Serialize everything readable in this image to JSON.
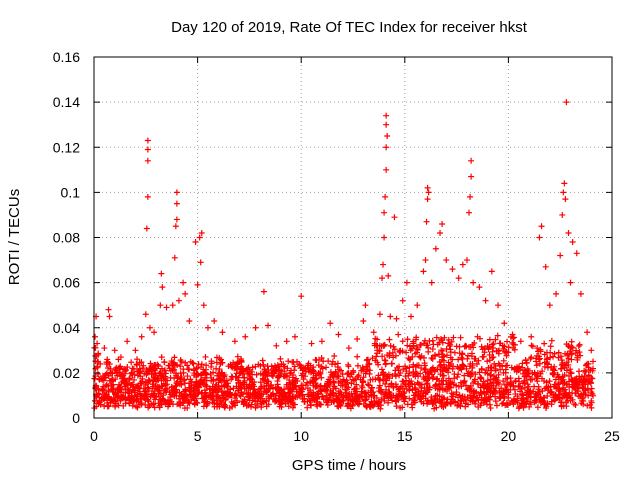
{
  "chart_data": {
    "type": "scatter",
    "title": "Day 120 of 2019, Rate Of TEC Index for receiver hkst",
    "xlabel": "GPS time / hours",
    "ylabel": "ROTI / TECUs",
    "xlim": [
      0,
      25
    ],
    "ylim": [
      0,
      0.16
    ],
    "x_ticks": [
      0,
      5,
      10,
      15,
      20,
      25
    ],
    "x_tick_labels": [
      "0",
      "5",
      "10",
      "15",
      "20",
      "25"
    ],
    "y_ticks": [
      0,
      0.02,
      0.04,
      0.06,
      0.08,
      0.1,
      0.12,
      0.14,
      0.16
    ],
    "y_tick_labels": [
      "0",
      "0.02",
      "0.04",
      "0.06",
      "0.08",
      "0.1",
      "0.12",
      "0.14",
      "0.16"
    ],
    "grid": true,
    "marker": "+",
    "marker_color": "#ff0000",
    "series": [
      {
        "name": "ROTI",
        "points": [
          [
            0.05,
            0.036
          ],
          [
            0.1,
            0.045
          ],
          [
            0.15,
            0.033
          ],
          [
            0.2,
            0.028
          ],
          [
            0.3,
            0.024
          ],
          [
            0.5,
            0.031
          ],
          [
            0.7,
            0.048
          ],
          [
            0.75,
            0.045
          ],
          [
            1.0,
            0.03
          ],
          [
            1.3,
            0.027
          ],
          [
            1.6,
            0.034
          ],
          [
            2.0,
            0.03
          ],
          [
            2.3,
            0.036
          ],
          [
            2.5,
            0.046
          ],
          [
            2.55,
            0.084
          ],
          [
            2.6,
            0.098
          ],
          [
            2.6,
            0.114
          ],
          [
            2.6,
            0.119
          ],
          [
            2.6,
            0.123
          ],
          [
            2.7,
            0.04
          ],
          [
            2.9,
            0.038
          ],
          [
            3.2,
            0.05
          ],
          [
            3.25,
            0.064
          ],
          [
            3.3,
            0.058
          ],
          [
            3.5,
            0.049
          ],
          [
            3.8,
            0.05
          ],
          [
            3.9,
            0.071
          ],
          [
            3.95,
            0.085
          ],
          [
            4.0,
            0.088
          ],
          [
            4.0,
            0.1
          ],
          [
            4.0,
            0.095
          ],
          [
            4.1,
            0.052
          ],
          [
            4.3,
            0.06
          ],
          [
            4.4,
            0.055
          ],
          [
            4.6,
            0.043
          ],
          [
            4.9,
            0.078
          ],
          [
            5.0,
            0.059
          ],
          [
            5.1,
            0.08
          ],
          [
            5.15,
            0.069
          ],
          [
            5.2,
            0.082
          ],
          [
            5.3,
            0.05
          ],
          [
            5.5,
            0.04
          ],
          [
            5.8,
            0.043
          ],
          [
            6.2,
            0.038
          ],
          [
            6.8,
            0.034
          ],
          [
            7.3,
            0.036
          ],
          [
            7.8,
            0.04
          ],
          [
            8.2,
            0.056
          ],
          [
            8.4,
            0.041
          ],
          [
            8.8,
            0.032
          ],
          [
            9.3,
            0.034
          ],
          [
            9.7,
            0.036
          ],
          [
            10.0,
            0.054
          ],
          [
            10.5,
            0.033
          ],
          [
            11.0,
            0.034
          ],
          [
            11.4,
            0.042
          ],
          [
            11.8,
            0.037
          ],
          [
            12.3,
            0.031
          ],
          [
            12.7,
            0.035
          ],
          [
            13.0,
            0.043
          ],
          [
            13.1,
            0.05
          ],
          [
            13.5,
            0.038
          ],
          [
            13.8,
            0.046
          ],
          [
            13.9,
            0.062
          ],
          [
            13.95,
            0.068
          ],
          [
            14.0,
            0.08
          ],
          [
            14.0,
            0.091
          ],
          [
            14.05,
            0.098
          ],
          [
            14.1,
            0.11
          ],
          [
            14.1,
            0.12
          ],
          [
            14.15,
            0.125
          ],
          [
            14.1,
            0.13
          ],
          [
            14.1,
            0.134
          ],
          [
            14.2,
            0.063
          ],
          [
            14.3,
            0.045
          ],
          [
            14.5,
            0.089
          ],
          [
            14.6,
            0.044
          ],
          [
            14.9,
            0.052
          ],
          [
            15.1,
            0.06
          ],
          [
            15.3,
            0.045
          ],
          [
            15.6,
            0.05
          ],
          [
            15.9,
            0.065
          ],
          [
            16.0,
            0.07
          ],
          [
            16.05,
            0.087
          ],
          [
            16.1,
            0.097
          ],
          [
            16.1,
            0.102
          ],
          [
            16.15,
            0.1
          ],
          [
            16.3,
            0.06
          ],
          [
            16.5,
            0.075
          ],
          [
            16.7,
            0.082
          ],
          [
            16.8,
            0.086
          ],
          [
            17.0,
            0.07
          ],
          [
            17.3,
            0.066
          ],
          [
            17.6,
            0.062
          ],
          [
            17.8,
            0.068
          ],
          [
            18.0,
            0.07
          ],
          [
            18.1,
            0.091
          ],
          [
            18.15,
            0.098
          ],
          [
            18.2,
            0.107
          ],
          [
            18.2,
            0.114
          ],
          [
            18.3,
            0.06
          ],
          [
            18.6,
            0.058
          ],
          [
            18.9,
            0.052
          ],
          [
            19.2,
            0.065
          ],
          [
            19.5,
            0.05
          ],
          [
            19.8,
            0.042
          ],
          [
            20.2,
            0.037
          ],
          [
            20.6,
            0.034
          ],
          [
            21.1,
            0.036
          ],
          [
            21.5,
            0.08
          ],
          [
            21.6,
            0.085
          ],
          [
            21.8,
            0.067
          ],
          [
            22.0,
            0.05
          ],
          [
            22.3,
            0.055
          ],
          [
            22.5,
            0.072
          ],
          [
            22.6,
            0.09
          ],
          [
            22.65,
            0.1
          ],
          [
            22.7,
            0.104
          ],
          [
            22.75,
            0.097
          ],
          [
            22.8,
            0.14
          ],
          [
            22.9,
            0.082
          ],
          [
            23.0,
            0.06
          ],
          [
            23.1,
            0.078
          ],
          [
            23.3,
            0.073
          ],
          [
            23.5,
            0.055
          ],
          [
            23.8,
            0.038
          ],
          [
            24.0,
            0.03
          ]
        ]
      }
    ]
  }
}
